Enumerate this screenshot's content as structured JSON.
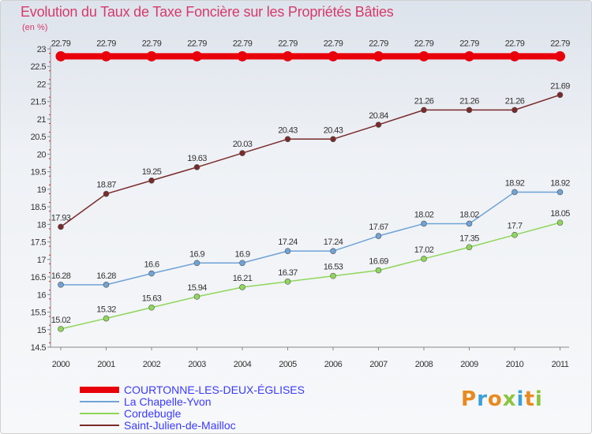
{
  "chart_data": {
    "type": "line",
    "title": "Evolution du Taux de Taxe Foncière sur les Propriétés Bâties",
    "ylabel": "(en %)",
    "xlabel": "",
    "categories": [
      "2000",
      "2001",
      "2002",
      "2003",
      "2004",
      "2005",
      "2006",
      "2007",
      "2008",
      "2009",
      "2010",
      "2011"
    ],
    "ylim": [
      14.5,
      23
    ],
    "yticks": [
      14.5,
      15,
      15.5,
      16,
      16.5,
      17,
      17.5,
      18,
      18.5,
      19,
      19.5,
      20,
      20.5,
      21,
      21.5,
      22,
      22.5,
      23
    ],
    "grid": false,
    "legend_position": "bottom-left",
    "series": [
      {
        "name": "COURTONNE-LES-DEUX-ÉGLISES",
        "color": "#e8000b",
        "values": [
          22.79,
          22.79,
          22.79,
          22.79,
          22.79,
          22.79,
          22.79,
          22.79,
          22.79,
          22.79,
          22.79,
          22.79
        ],
        "labels": [
          "22.79",
          "22.79",
          "22.79",
          "22.79",
          "22.79",
          "22.79",
          "22.79",
          "22.79",
          "22.79",
          "22.79",
          "22.79",
          "22.79"
        ]
      },
      {
        "name": "La Chapelle-Yvon",
        "color": "#6fa3d6",
        "values": [
          16.28,
          16.28,
          16.6,
          16.9,
          16.9,
          17.24,
          17.24,
          17.67,
          18.02,
          18.02,
          18.92,
          18.92
        ],
        "labels": [
          "16.28",
          "16.28",
          "16.6",
          "16.9",
          "16.9",
          "17.24",
          "17.24",
          "17.67",
          "18.02",
          "18.02",
          "18.92",
          "18.92"
        ]
      },
      {
        "name": "Cordebugle",
        "color": "#8fd65a",
        "values": [
          15.02,
          15.32,
          15.63,
          15.94,
          16.21,
          16.37,
          16.53,
          16.69,
          17.02,
          17.35,
          17.7,
          18.05
        ],
        "labels": [
          "15.02",
          "15.32",
          "15.63",
          "15.94",
          "16.21",
          "16.37",
          "16.53",
          "16.69",
          "17.02",
          "17.35",
          "17.7",
          "18.05"
        ]
      },
      {
        "name": "Saint-Julien-de-Mailloc",
        "color": "#7a2a2a",
        "values": [
          17.93,
          18.87,
          19.25,
          19.63,
          20.03,
          20.43,
          20.43,
          20.84,
          21.26,
          21.26,
          21.26,
          21.69
        ],
        "labels": [
          "17.93",
          "18.87",
          "19.25",
          "19.63",
          "20.03",
          "20.43",
          "20.43",
          "20.84",
          "21.26",
          "21.26",
          "21.26",
          "21.69"
        ]
      }
    ]
  },
  "brand": {
    "name": "Proxiti",
    "letters": [
      {
        "ch": "P",
        "color": "#e88a1f"
      },
      {
        "ch": "r",
        "color": "#3aa1d8"
      },
      {
        "ch": "o",
        "color": "#e88a1f"
      },
      {
        "ch": "x",
        "color": "#8bc53f"
      },
      {
        "ch": "i",
        "color": "#3aa1d8"
      },
      {
        "ch": "t",
        "color": "#e88a1f"
      },
      {
        "ch": "i",
        "color": "#8bc53f"
      }
    ]
  }
}
